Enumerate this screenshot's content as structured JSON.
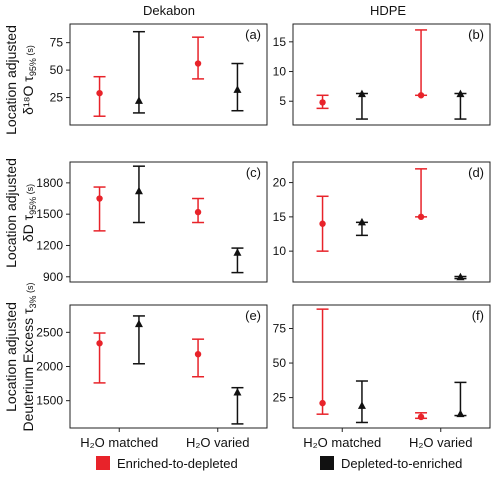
{
  "columns": [
    "Dekabon",
    "HDPE"
  ],
  "row_labels": [
    {
      "line1": "Location adjusted",
      "line2": "δ¹⁸O τ",
      "sub": "95%",
      "unit": " (s)"
    },
    {
      "line1": "Location adjusted",
      "line2": "δD τ",
      "sub": "95%",
      "unit": " (s)"
    },
    {
      "line1": "Location adjusted",
      "line2": "Deuterium Excess τ",
      "sub": "3%",
      "unit": " (s)"
    }
  ],
  "legend": [
    {
      "label": "Enriched-to-depleted",
      "color": "#e8232a"
    },
    {
      "label": "Depleted-to-enriched",
      "color": "#111111"
    }
  ],
  "chart_data": [
    {
      "type": "scatter",
      "panel": "(a)",
      "column": "Dekabon",
      "categories": [
        "H₂O matched",
        "H₂O varied"
      ],
      "ylim": [
        0,
        92
      ],
      "yticks": [
        25,
        50,
        75
      ],
      "series": [
        {
          "name": "Enriched-to-depleted",
          "marker": "circle",
          "points": [
            {
              "category": 0,
              "y": 29,
              "low": 8,
              "high": 44
            },
            {
              "category": 1,
              "y": 56,
              "low": 42,
              "high": 80
            }
          ]
        },
        {
          "name": "Depleted-to-enriched",
          "marker": "triangle",
          "points": [
            {
              "category": 0,
              "y": 22,
              "low": 11,
              "high": 85
            },
            {
              "category": 1,
              "y": 32,
              "low": 13,
              "high": 56
            }
          ]
        }
      ]
    },
    {
      "type": "scatter",
      "panel": "(b)",
      "column": "HDPE",
      "categories": [
        "H₂O matched",
        "H₂O varied"
      ],
      "ylim": [
        1,
        18
      ],
      "yticks": [
        5,
        10,
        15
      ],
      "series": [
        {
          "name": "Enriched-to-depleted",
          "marker": "circle",
          "points": [
            {
              "category": 0,
              "y": 4.8,
              "low": 3.8,
              "high": 6
            },
            {
              "category": 1,
              "y": 6,
              "low": 6,
              "high": 17
            }
          ]
        },
        {
          "name": "Depleted-to-enriched",
          "marker": "triangle",
          "points": [
            {
              "category": 0,
              "y": 6.2,
              "low": 2,
              "high": 6.3
            },
            {
              "category": 1,
              "y": 6.2,
              "low": 2,
              "high": 6.3
            }
          ]
        }
      ]
    },
    {
      "type": "scatter",
      "panel": "(c)",
      "column": "Dekabon",
      "categories": [
        "H₂O matched",
        "H₂O varied"
      ],
      "ylim": [
        850,
        2000
      ],
      "yticks": [
        900,
        1200,
        1500,
        1800
      ],
      "series": [
        {
          "name": "Enriched-to-depleted",
          "marker": "circle",
          "points": [
            {
              "category": 0,
              "y": 1650,
              "low": 1340,
              "high": 1760
            },
            {
              "category": 1,
              "y": 1520,
              "low": 1420,
              "high": 1650
            }
          ]
        },
        {
          "name": "Depleted-to-enriched",
          "marker": "triangle",
          "points": [
            {
              "category": 0,
              "y": 1720,
              "low": 1420,
              "high": 1960
            },
            {
              "category": 1,
              "y": 1130,
              "low": 940,
              "high": 1175
            }
          ]
        }
      ]
    },
    {
      "type": "scatter",
      "panel": "(d)",
      "column": "HDPE",
      "categories": [
        "H₂O matched",
        "H₂O varied"
      ],
      "ylim": [
        5.5,
        23
      ],
      "yticks": [
        10,
        15,
        20
      ],
      "series": [
        {
          "name": "Enriched-to-depleted",
          "marker": "circle",
          "points": [
            {
              "category": 0,
              "y": 14,
              "low": 10,
              "high": 18
            },
            {
              "category": 1,
              "y": 15,
              "low": 15,
              "high": 22
            }
          ]
        },
        {
          "name": "Depleted-to-enriched",
          "marker": "triangle",
          "points": [
            {
              "category": 0,
              "y": 14.2,
              "low": 12.3,
              "high": 14.2
            },
            {
              "category": 1,
              "y": 6.2,
              "low": 6,
              "high": 6.3
            }
          ]
        }
      ]
    },
    {
      "type": "scatter",
      "panel": "(e)",
      "column": "Dekabon",
      "categories": [
        "H₂O matched",
        "H₂O varied"
      ],
      "ylim": [
        1100,
        2900
      ],
      "yticks": [
        1500,
        2000,
        2500
      ],
      "series": [
        {
          "name": "Enriched-to-depleted",
          "marker": "circle",
          "points": [
            {
              "category": 0,
              "y": 2340,
              "low": 1760,
              "high": 2490
            },
            {
              "category": 1,
              "y": 2180,
              "low": 1850,
              "high": 2400
            }
          ]
        },
        {
          "name": "Depleted-to-enriched",
          "marker": "triangle",
          "points": [
            {
              "category": 0,
              "y": 2620,
              "low": 2040,
              "high": 2740
            },
            {
              "category": 1,
              "y": 1620,
              "low": 1160,
              "high": 1690
            }
          ]
        }
      ]
    },
    {
      "type": "scatter",
      "panel": "(f)",
      "column": "HDPE",
      "categories": [
        "H₂O matched",
        "H₂O varied"
      ],
      "ylim": [
        3,
        92
      ],
      "yticks": [
        25,
        50,
        75
      ],
      "series": [
        {
          "name": "Enriched-to-depleted",
          "marker": "circle",
          "points": [
            {
              "category": 0,
              "y": 21,
              "low": 13,
              "high": 89
            },
            {
              "category": 1,
              "y": 11,
              "low": 10,
              "high": 14
            }
          ]
        },
        {
          "name": "Depleted-to-enriched",
          "marker": "triangle",
          "points": [
            {
              "category": 0,
              "y": 19,
              "low": 7,
              "high": 37
            },
            {
              "category": 1,
              "y": 13,
              "low": 12,
              "high": 36
            }
          ]
        }
      ]
    }
  ]
}
